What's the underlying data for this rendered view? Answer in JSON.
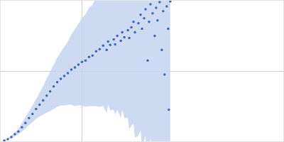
{
  "chart_data": {
    "type": "scatter",
    "x": [
      0.05,
      0.1,
      0.15,
      0.2,
      0.25,
      0.3,
      0.35,
      0.4,
      0.45,
      0.5,
      0.55,
      0.6,
      0.65,
      0.7,
      0.75,
      0.8,
      0.85,
      0.9,
      0.95,
      1.0,
      1.05,
      1.1,
      1.15,
      1.2,
      1.25,
      1.3,
      1.35,
      1.4,
      1.45,
      1.5,
      1.52,
      1.55,
      1.6,
      1.62,
      1.65,
      1.7,
      1.72,
      1.75,
      1.8,
      1.82,
      1.85,
      1.88,
      1.9,
      1.95,
      1.98,
      2.0,
      2.03,
      2.05,
      2.08,
      2.1,
      2.12,
      2.15,
      2.18,
      2.2,
      2.22,
      2.25,
      2.28,
      2.3,
      2.32,
      2.35,
      2.37,
      2.38,
      2.4
    ],
    "values": [
      0.01,
      0.03,
      0.06,
      0.1,
      0.14,
      0.2,
      0.26,
      0.33,
      0.39,
      0.46,
      0.52,
      0.58,
      0.65,
      0.71,
      0.78,
      0.84,
      0.89,
      0.93,
      0.97,
      1.02,
      1.05,
      1.09,
      1.13,
      1.15,
      1.2,
      1.22,
      1.28,
      1.31,
      1.36,
      1.3,
      1.42,
      1.37,
      1.45,
      1.38,
      1.5,
      1.43,
      1.55,
      1.48,
      1.58,
      1.47,
      1.62,
      1.7,
      1.55,
      1.68,
      1.8,
      1.6,
      1.75,
      1.88,
      1.15,
      1.7,
      1.95,
      1.82,
      1.5,
      1.9,
      1.72,
      1.98,
      1.3,
      1.85,
      0.95,
      1.92,
      1.6,
      0.45,
      1.99
    ],
    "error": [
      0.005,
      0.01,
      0.02,
      0.03,
      0.04,
      0.06,
      0.08,
      0.1,
      0.12,
      0.14,
      0.17,
      0.2,
      0.24,
      0.28,
      0.32,
      0.35,
      0.38,
      0.42,
      0.45,
      0.5,
      0.55,
      0.58,
      0.62,
      0.66,
      0.7,
      0.72,
      0.78,
      0.82,
      0.86,
      0.9,
      0.9,
      0.93,
      1.0,
      1.0,
      1.05,
      1.1,
      1.1,
      1.15,
      1.25,
      1.3,
      1.4,
      1.45,
      1.5,
      1.6,
      1.65,
      1.7,
      1.75,
      1.8,
      1.85,
      1.9,
      1.9,
      1.95,
      2.0,
      2.0,
      2.05,
      2.1,
      2.1,
      2.15,
      2.2,
      2.2,
      2.25,
      2.3,
      2.3
    ],
    "color": "#3a68c0",
    "marker": "circle",
    "xlim": [
      0,
      4
    ],
    "ylim": [
      0,
      2
    ],
    "xticks": [
      1.15
    ],
    "yticks": [
      1
    ],
    "grid": true,
    "tick_labels": false
  }
}
